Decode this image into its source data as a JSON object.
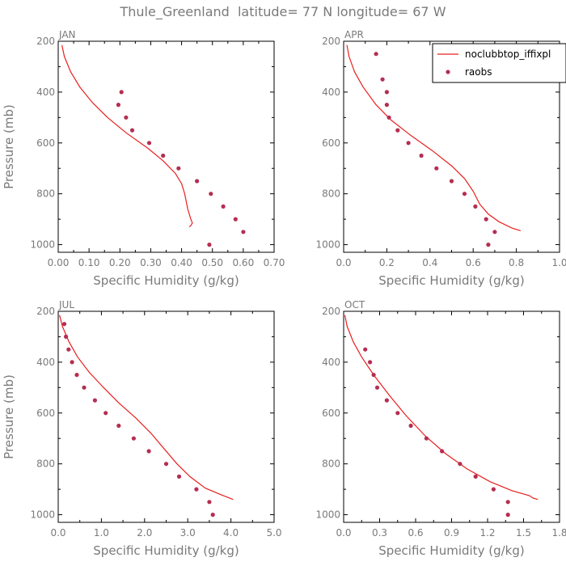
{
  "figure": {
    "title": "Thule_Greenland  latitude= 77 N longitude= 67 W",
    "model_color": "#e8201e",
    "obs_color": "#b52e52"
  },
  "chart_data": [
    {
      "type": "line",
      "panel": "JAN",
      "title": "JAN",
      "xlabel": "Specific Humidity (g/kg)",
      "ylabel": "Pressure (mb)",
      "xlim": [
        0,
        0.7
      ],
      "ylim": [
        1030,
        200
      ],
      "xticks": [
        0.0,
        0.1,
        0.2,
        0.3,
        0.4,
        0.5,
        0.6,
        0.7
      ],
      "xtick_labels": [
        "0.00",
        "0.10",
        "0.20",
        "0.30",
        "0.40",
        "0.50",
        "0.60",
        "0.70"
      ],
      "yticks": [
        200,
        400,
        600,
        800,
        1000
      ],
      "ytick_labels": [
        "200",
        "400",
        "600",
        "800",
        "1000"
      ],
      "legend": null,
      "series": [
        {
          "name": "noclubbtop_iffixpl",
          "kind": "line",
          "points": [
            [
              0.012,
              215
            ],
            [
              0.02,
              260
            ],
            [
              0.04,
              320
            ],
            [
              0.07,
              380
            ],
            [
              0.11,
              440
            ],
            [
              0.16,
              500
            ],
            [
              0.22,
              560
            ],
            [
              0.29,
              620
            ],
            [
              0.34,
              670
            ],
            [
              0.38,
              720
            ],
            [
              0.4,
              760
            ],
            [
              0.41,
              800
            ],
            [
              0.42,
              860
            ],
            [
              0.43,
              900
            ],
            [
              0.435,
              915
            ],
            [
              0.43,
              925
            ],
            [
              0.425,
              930
            ]
          ]
        },
        {
          "name": "raobs",
          "kind": "scatter",
          "points": [
            [
              0.205,
              400
            ],
            [
              0.195,
              450
            ],
            [
              0.22,
              500
            ],
            [
              0.24,
              550
            ],
            [
              0.295,
              600
            ],
            [
              0.34,
              650
            ],
            [
              0.39,
              700
            ],
            [
              0.45,
              750
            ],
            [
              0.495,
              800
            ],
            [
              0.535,
              850
            ],
            [
              0.575,
              900
            ],
            [
              0.6,
              950
            ],
            [
              0.49,
              1000
            ]
          ]
        }
      ]
    },
    {
      "type": "line",
      "panel": "APR",
      "title": "APR",
      "xlabel": "Specific Humidity (g/kg)",
      "ylabel": "",
      "xlim": [
        0,
        1.0
      ],
      "ylim": [
        1030,
        200
      ],
      "xticks": [
        0.0,
        0.2,
        0.4,
        0.6,
        0.8,
        1.0
      ],
      "xtick_labels": [
        "0.0",
        "0.2",
        "0.4",
        "0.6",
        "0.8",
        "1.0"
      ],
      "yticks": [
        200,
        400,
        600,
        800,
        1000
      ],
      "ytick_labels": [
        "200",
        "400",
        "600",
        "800",
        "1000"
      ],
      "legend": {
        "entries": [
          {
            "label": "noclubbtop_iffixpl",
            "kind": "line"
          },
          {
            "label": "raobs",
            "kind": "marker"
          }
        ]
      },
      "series": [
        {
          "name": "noclubbtop_iffixpl",
          "kind": "line",
          "points": [
            [
              0.015,
              215
            ],
            [
              0.025,
              260
            ],
            [
              0.05,
              320
            ],
            [
              0.09,
              380
            ],
            [
              0.15,
              450
            ],
            [
              0.22,
              510
            ],
            [
              0.31,
              570
            ],
            [
              0.41,
              630
            ],
            [
              0.5,
              690
            ],
            [
              0.56,
              740
            ],
            [
              0.6,
              790
            ],
            [
              0.63,
              840
            ],
            [
              0.67,
              880
            ],
            [
              0.72,
              910
            ],
            [
              0.78,
              935
            ],
            [
              0.82,
              945
            ]
          ]
        },
        {
          "name": "raobs",
          "kind": "scatter",
          "points": [
            [
              0.15,
              250
            ],
            [
              0.18,
              350
            ],
            [
              0.2,
              400
            ],
            [
              0.2,
              450
            ],
            [
              0.21,
              500
            ],
            [
              0.25,
              550
            ],
            [
              0.3,
              600
            ],
            [
              0.36,
              650
            ],
            [
              0.43,
              700
            ],
            [
              0.5,
              750
            ],
            [
              0.56,
              800
            ],
            [
              0.61,
              850
            ],
            [
              0.66,
              900
            ],
            [
              0.7,
              950
            ],
            [
              0.67,
              1000
            ]
          ]
        }
      ]
    },
    {
      "type": "line",
      "panel": "JUL",
      "title": "JUL",
      "xlabel": "Specific Humidity (g/kg)",
      "ylabel": "Pressure (mb)",
      "xlim": [
        0,
        5.0
      ],
      "ylim": [
        1030,
        200
      ],
      "xticks": [
        0.0,
        1.0,
        2.0,
        3.0,
        4.0,
        5.0
      ],
      "xtick_labels": [
        "0.0",
        "1.0",
        "2.0",
        "3.0",
        "4.0",
        "5.0"
      ],
      "yticks": [
        200,
        400,
        600,
        800,
        1000
      ],
      "ytick_labels": [
        "200",
        "400",
        "600",
        "800",
        "1000"
      ],
      "legend": null,
      "series": [
        {
          "name": "noclubbtop_iffixpl",
          "kind": "line",
          "points": [
            [
              0.03,
              215
            ],
            [
              0.1,
              260
            ],
            [
              0.25,
              320
            ],
            [
              0.45,
              380
            ],
            [
              0.72,
              440
            ],
            [
              1.05,
              500
            ],
            [
              1.4,
              560
            ],
            [
              1.8,
              620
            ],
            [
              2.15,
              680
            ],
            [
              2.45,
              740
            ],
            [
              2.75,
              800
            ],
            [
              3.05,
              850
            ],
            [
              3.4,
              895
            ],
            [
              3.75,
              920
            ],
            [
              4.05,
              940
            ]
          ]
        },
        {
          "name": "raobs",
          "kind": "scatter",
          "points": [
            [
              0.14,
              250
            ],
            [
              0.18,
              300
            ],
            [
              0.24,
              350
            ],
            [
              0.32,
              400
            ],
            [
              0.43,
              450
            ],
            [
              0.6,
              500
            ],
            [
              0.85,
              550
            ],
            [
              1.1,
              600
            ],
            [
              1.4,
              650
            ],
            [
              1.75,
              700
            ],
            [
              2.1,
              750
            ],
            [
              2.5,
              800
            ],
            [
              2.8,
              850
            ],
            [
              3.2,
              900
            ],
            [
              3.5,
              950
            ],
            [
              3.58,
              1000
            ]
          ]
        }
      ]
    },
    {
      "type": "line",
      "panel": "OCT",
      "title": "OCT",
      "xlabel": "Specific Humidity (g/kg)",
      "ylabel": "",
      "xlim": [
        0,
        1.8
      ],
      "ylim": [
        1030,
        200
      ],
      "xticks": [
        0.0,
        0.3,
        0.6,
        0.9,
        1.2,
        1.5,
        1.8
      ],
      "xtick_labels": [
        "0.0",
        "0.3",
        "0.6",
        "0.9",
        "1.2",
        "1.5",
        "1.8"
      ],
      "yticks": [
        200,
        400,
        600,
        800,
        1000
      ],
      "ytick_labels": [
        "200",
        "400",
        "600",
        "800",
        "1000"
      ],
      "legend": null,
      "series": [
        {
          "name": "noclubbtop_iffixpl",
          "kind": "line",
          "points": [
            [
              0.01,
              215
            ],
            [
              0.03,
              260
            ],
            [
              0.08,
              320
            ],
            [
              0.15,
              380
            ],
            [
              0.25,
              450
            ],
            [
              0.38,
              530
            ],
            [
              0.52,
              610
            ],
            [
              0.68,
              690
            ],
            [
              0.85,
              760
            ],
            [
              1.03,
              820
            ],
            [
              1.22,
              870
            ],
            [
              1.4,
              905
            ],
            [
              1.55,
              925
            ],
            [
              1.58,
              935
            ],
            [
              1.62,
              940
            ]
          ]
        },
        {
          "name": "raobs",
          "kind": "scatter",
          "points": [
            [
              0.18,
              350
            ],
            [
              0.22,
              400
            ],
            [
              0.25,
              450
            ],
            [
              0.28,
              500
            ],
            [
              0.36,
              550
            ],
            [
              0.45,
              600
            ],
            [
              0.56,
              650
            ],
            [
              0.69,
              700
            ],
            [
              0.82,
              750
            ],
            [
              0.97,
              800
            ],
            [
              1.1,
              850
            ],
            [
              1.25,
              900
            ],
            [
              1.37,
              950
            ],
            [
              1.37,
              1000
            ]
          ]
        }
      ]
    }
  ]
}
